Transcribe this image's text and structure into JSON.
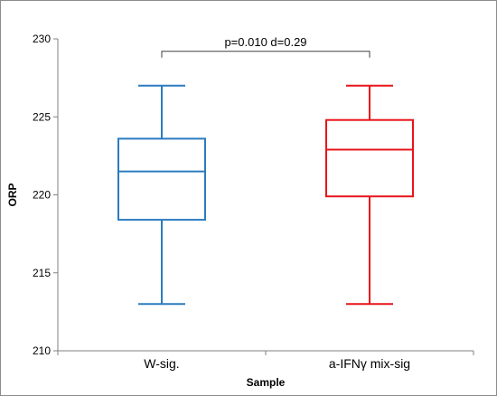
{
  "chart_data": {
    "type": "box",
    "xlabel": "Sample",
    "ylabel": "ORP",
    "ylim": [
      210,
      230
    ],
    "yticks": [
      210,
      215,
      220,
      225,
      230
    ],
    "grid": false,
    "categories": [
      "W-sig.",
      "a-IFNγ mix-sig"
    ],
    "boxes": [
      {
        "category": "W-sig.",
        "min": 213,
        "q1": 218.4,
        "median": 221.5,
        "q3": 223.6,
        "max": 227,
        "color": "#2b7bbf"
      },
      {
        "category": "a-IFNγ mix-sig",
        "min": 213,
        "q1": 219.9,
        "median": 222.9,
        "q3": 224.8,
        "max": 227,
        "color": "#e8141b"
      }
    ],
    "annotation": {
      "text": "p=0.010   d=0.29",
      "between": [
        "W-sig.",
        "a-IFNγ mix-sig"
      ],
      "y": 229.2
    }
  }
}
